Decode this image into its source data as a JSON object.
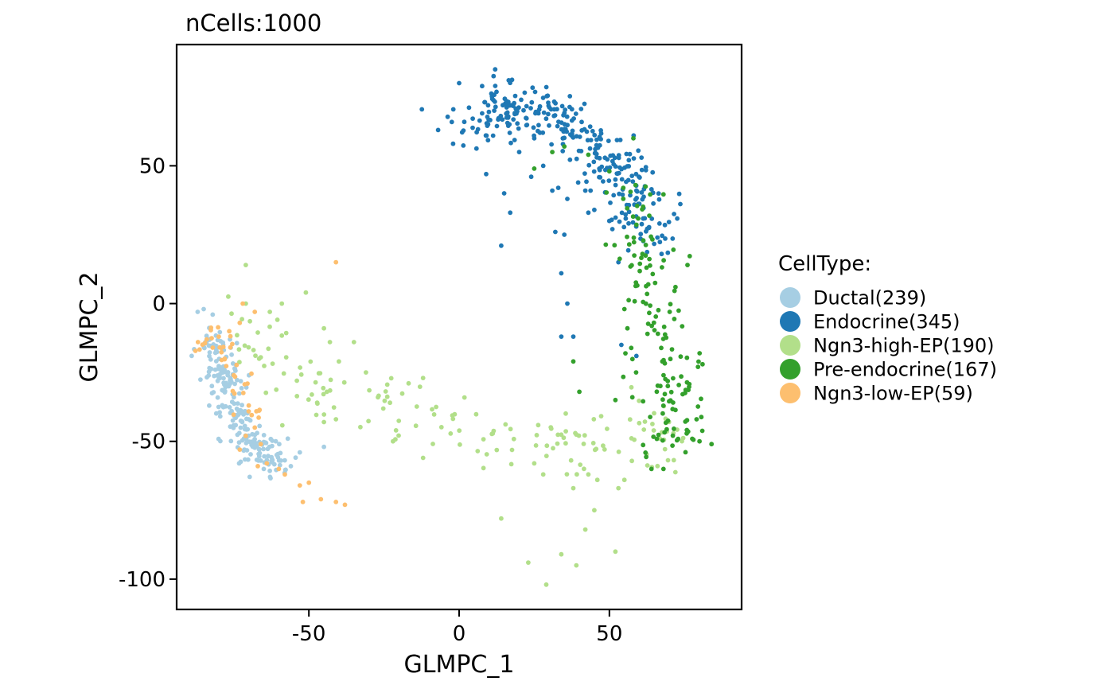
{
  "chart_data": {
    "type": "scatter",
    "title": "nCells:1000",
    "xlabel": "GLMPC_1",
    "ylabel": "GLMPC_2",
    "xlim": [
      -94,
      94
    ],
    "ylim": [
      -111,
      94
    ],
    "xticks": [
      "-50",
      "0",
      "50"
    ],
    "xtick_values": [
      -50,
      0,
      50
    ],
    "yticks": [
      "50",
      "0",
      "-50",
      "-100"
    ],
    "ytick_values": [
      50,
      0,
      -50,
      -100
    ],
    "grid": false,
    "legend_title": "CellType:",
    "legend_position": "right",
    "series": [
      {
        "name": "Ductal(239)",
        "color": "#a6cee3",
        "count": 239,
        "centers": [
          [
            -82,
            -16
          ],
          [
            -79,
            -24
          ],
          [
            -77,
            -31
          ],
          [
            -74,
            -40
          ],
          [
            -71,
            -47
          ],
          [
            -67,
            -53
          ],
          [
            -62,
            -57
          ]
        ],
        "spread": 3.2,
        "points": [
          [
            -87,
            -3
          ],
          [
            -85,
            -2
          ],
          [
            -82,
            -4
          ],
          [
            -76,
            -16
          ],
          [
            -70,
            -42
          ],
          [
            -61,
            -50
          ],
          [
            -57,
            -49
          ],
          [
            -53,
            -54
          ],
          [
            -45,
            -52
          ],
          [
            -56,
            -59
          ],
          [
            -65,
            -60
          ]
        ]
      },
      {
        "name": "Endocrine(345)",
        "color": "#1f78b4",
        "count": 345,
        "centers": [
          [
            5,
            67
          ],
          [
            12,
            70
          ],
          [
            18,
            72
          ],
          [
            24,
            69
          ],
          [
            30,
            68
          ],
          [
            36,
            63
          ],
          [
            42,
            58
          ],
          [
            48,
            52
          ],
          [
            53,
            50
          ],
          [
            57,
            43
          ],
          [
            60,
            34
          ],
          [
            64,
            27
          ]
        ],
        "spread": 5.0,
        "points": [
          [
            12,
            85
          ],
          [
            0,
            80
          ],
          [
            -7,
            63
          ],
          [
            -2,
            58
          ],
          [
            17,
            33
          ],
          [
            15,
            40
          ],
          [
            9,
            47
          ],
          [
            24,
            46
          ],
          [
            31,
            41
          ],
          [
            33,
            42
          ],
          [
            42,
            41
          ],
          [
            36,
            38
          ],
          [
            35,
            25
          ],
          [
            32,
            26
          ],
          [
            45,
            34
          ],
          [
            43,
            33
          ],
          [
            51,
            27
          ],
          [
            14,
            21
          ],
          [
            53,
            15
          ],
          [
            34,
            11
          ],
          [
            36,
            0
          ],
          [
            34,
            -12
          ],
          [
            38,
            -12
          ],
          [
            54,
            -15
          ],
          [
            59,
            -19
          ],
          [
            28,
            50
          ],
          [
            20,
            55
          ],
          [
            25,
            60
          ],
          [
            52,
            45
          ],
          [
            50,
            30
          ]
        ]
      },
      {
        "name": "Ngn3-high-EP(190)",
        "color": "#b2df8a",
        "count": 190,
        "centers": [
          [
            -70,
            -10
          ],
          [
            -64,
            -17
          ],
          [
            -56,
            -26
          ],
          [
            -44,
            -35
          ],
          [
            -28,
            -35
          ],
          [
            -14,
            -41
          ],
          [
            2,
            -42
          ],
          [
            15,
            -46
          ],
          [
            27,
            -47
          ],
          [
            38,
            -50
          ],
          [
            48,
            -50
          ],
          [
            57,
            -48
          ],
          [
            65,
            -47
          ],
          [
            70,
            -51
          ]
        ],
        "spread": 6.0,
        "points": [
          [
            -71,
            14
          ],
          [
            -71,
            0
          ],
          [
            -59,
            0
          ],
          [
            -63,
            -3
          ],
          [
            -51,
            4
          ],
          [
            -45,
            -9
          ],
          [
            -43,
            -14
          ],
          [
            -35,
            -14
          ],
          [
            -31,
            -25
          ],
          [
            -40,
            -21
          ],
          [
            -27,
            -34
          ],
          [
            -23,
            -36
          ],
          [
            -21,
            -46
          ],
          [
            -12,
            -27
          ],
          [
            -12,
            -56
          ],
          [
            -22,
            -50
          ],
          [
            -45,
            -43
          ],
          [
            -41,
            -42
          ],
          [
            -44,
            -32
          ],
          [
            -49,
            -33
          ],
          [
            -54,
            -28
          ],
          [
            14,
            -78
          ],
          [
            23,
            -94
          ],
          [
            25,
            -58
          ],
          [
            29,
            -102
          ],
          [
            34,
            -91
          ],
          [
            39,
            -95
          ],
          [
            42,
            -82
          ],
          [
            45,
            -75
          ],
          [
            52,
            -90
          ],
          [
            53,
            -67
          ],
          [
            55,
            -64
          ],
          [
            46,
            -64
          ],
          [
            28,
            -62
          ],
          [
            38,
            -67
          ],
          [
            43,
            -62
          ]
        ]
      },
      {
        "name": "Pre-endocrine(167)",
        "color": "#33a02c",
        "count": 167,
        "centers": [
          [
            57,
            36
          ],
          [
            60,
            23
          ],
          [
            62,
            13
          ],
          [
            63,
            0
          ],
          [
            66,
            -12
          ],
          [
            68,
            -21
          ],
          [
            71,
            -30
          ],
          [
            73,
            -38
          ],
          [
            74,
            -45
          ],
          [
            68,
            -48
          ]
        ],
        "spread": 5.0,
        "points": [
          [
            25,
            49
          ],
          [
            31,
            55
          ],
          [
            35,
            57
          ],
          [
            43,
            54
          ],
          [
            50,
            48
          ],
          [
            58,
            60
          ],
          [
            61,
            18
          ],
          [
            84,
            -51
          ],
          [
            80,
            -50
          ],
          [
            52,
            -35
          ],
          [
            40,
            -32
          ],
          [
            38,
            -21
          ],
          [
            56,
            -9
          ],
          [
            55,
            -2
          ],
          [
            64,
            -60
          ],
          [
            68,
            -60
          ],
          [
            79,
            -42
          ],
          [
            81,
            -22
          ],
          [
            76,
            14
          ],
          [
            72,
            6
          ]
        ]
      },
      {
        "name": "Ngn3-low-EP(59)",
        "color": "#fdbf6f",
        "count": 59,
        "centers": [
          [
            -83,
            -15
          ],
          [
            -80,
            -12
          ],
          [
            -77,
            -19
          ],
          [
            -73,
            -28
          ],
          [
            -69,
            -40
          ]
        ],
        "spread": 2.6,
        "points": [
          [
            -41,
            15
          ],
          [
            -72,
            0
          ],
          [
            -68,
            -3
          ],
          [
            -73,
            -7
          ],
          [
            -80,
            -12
          ],
          [
            -82,
            -16
          ],
          [
            -84,
            -13
          ],
          [
            -78,
            -20
          ],
          [
            -75,
            -26
          ],
          [
            -70,
            -37
          ],
          [
            -68,
            -45
          ],
          [
            -73,
            -53
          ],
          [
            -71,
            -48
          ],
          [
            -66,
            -51
          ],
          [
            -67,
            -59
          ],
          [
            -64,
            -58
          ],
          [
            -60,
            -60
          ],
          [
            -58,
            -62
          ],
          [
            -53,
            -66
          ],
          [
            -50,
            -65
          ],
          [
            -52,
            -72
          ],
          [
            -46,
            -71
          ],
          [
            -41,
            -72
          ],
          [
            -38,
            -73
          ]
        ]
      }
    ]
  }
}
